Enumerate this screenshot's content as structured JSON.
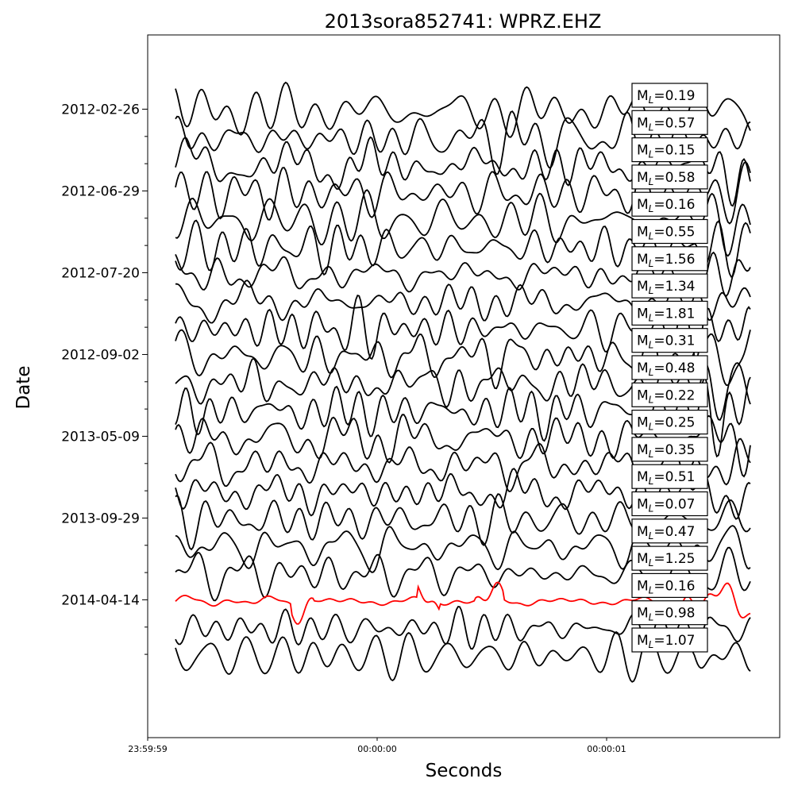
{
  "chart_data": {
    "type": "line",
    "title": "2013sora852741: WPRZ.EHZ",
    "xlabel": "Seconds",
    "ylabel": "Date",
    "x_ticks": [
      "23:59:59",
      "00:00:00",
      "00:00:01"
    ],
    "y_ticks": [
      "2012-02-26",
      "2012-06-29",
      "2012-07-20",
      "2012-09-02",
      "2013-05-09",
      "2013-09-29",
      "2014-04-14"
    ],
    "magnitude_prefix": "M",
    "magnitude_subscript": "L",
    "magnitudes": [
      "0.19",
      "0.57",
      "0.15",
      "0.58",
      "0.16",
      "0.55",
      "1.56",
      "1.34",
      "1.81",
      "0.31",
      "0.48",
      "0.22",
      "0.25",
      "0.35",
      "0.51",
      "0.07",
      "0.47",
      "1.25",
      "0.16",
      "0.98",
      "1.07"
    ],
    "highlight_trace_index": 18,
    "colors": {
      "trace": "#000000",
      "highlight": "#ff0000",
      "axes": "#000000",
      "label_box": "#ffffff"
    },
    "grid": false
  }
}
